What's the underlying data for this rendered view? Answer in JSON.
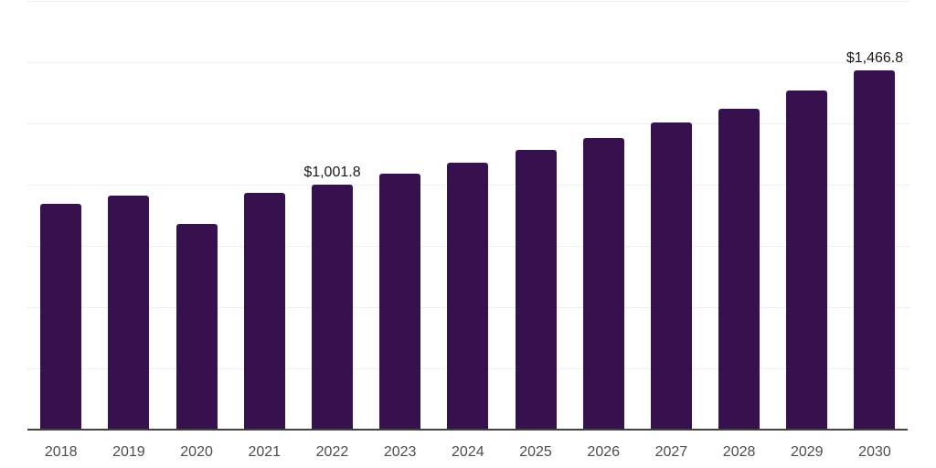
{
  "chart_data": {
    "type": "bar",
    "title": "",
    "xlabel": "",
    "ylabel": "",
    "categories": [
      "2018",
      "2019",
      "2020",
      "2021",
      "2022",
      "2023",
      "2024",
      "2025",
      "2026",
      "2027",
      "2028",
      "2029",
      "2030"
    ],
    "values": [
      920,
      956,
      840,
      965,
      1001.8,
      1045,
      1090,
      1140,
      1192,
      1252,
      1310,
      1385,
      1466.8
    ],
    "data_labels": {
      "2022": "$1,001.8",
      "2030": "$1,466.8"
    },
    "ylim": [
      0,
      1750
    ],
    "grid_step": 250,
    "grid": "horizontal",
    "legend": "none",
    "bar_color": "#36114e",
    "gridline_color": "#efefef",
    "axis_line_color": "#424242",
    "value_label_color": "#1a1a1a",
    "category_label_color": "#4d4d4d"
  }
}
